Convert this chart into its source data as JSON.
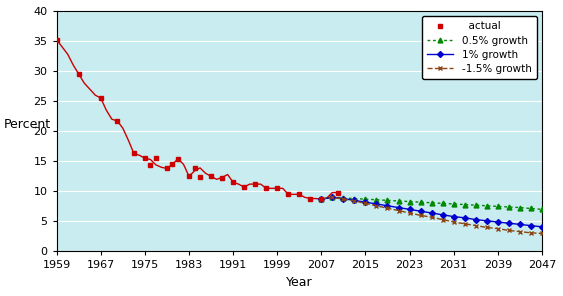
{
  "xlabel": "Year",
  "ylabel": "Percent",
  "background_color": "#c8ecf0",
  "fig_facecolor": "#ffffff",
  "xlim_min": 1959,
  "xlim_max": 2047,
  "ylim_min": 0,
  "ylim_max": 40,
  "xticks": [
    1959,
    1967,
    1975,
    1983,
    1991,
    1999,
    2007,
    2015,
    2023,
    2031,
    2039,
    2047
  ],
  "yticks": [
    0,
    5,
    10,
    15,
    20,
    25,
    30,
    35,
    40
  ],
  "actual_years": [
    1959,
    1963,
    1967,
    1970,
    1973,
    1975,
    1976,
    1977,
    1979,
    1980,
    1981,
    1983,
    1984,
    1985,
    1987,
    1989,
    1991,
    1993,
    1995,
    1997,
    1999,
    2001,
    2003,
    2005,
    2007,
    2010
  ],
  "actual_values": [
    35.2,
    29.5,
    25.5,
    21.7,
    16.3,
    15.5,
    14.4,
    15.5,
    13.8,
    14.5,
    15.4,
    12.5,
    13.9,
    12.4,
    12.5,
    12.3,
    11.5,
    10.7,
    11.2,
    10.5,
    10.5,
    9.5,
    9.5,
    8.8,
    8.7,
    9.8
  ],
  "actual_line_years": [
    1959,
    1960,
    1961,
    1962,
    1963,
    1964,
    1965,
    1966,
    1967,
    1968,
    1969,
    1970,
    1971,
    1972,
    1973,
    1974,
    1975,
    1976,
    1977,
    1978,
    1979,
    1980,
    1981,
    1982,
    1983,
    1984,
    1985,
    1986,
    1987,
    1988,
    1989,
    1990,
    1991,
    1992,
    1993,
    1994,
    1995,
    1996,
    1997,
    1998,
    1999,
    2000,
    2001,
    2002,
    2003,
    2004,
    2005,
    2006,
    2007,
    2008,
    2009,
    2010
  ],
  "actual_line_values": [
    35.2,
    34.0,
    32.8,
    31.0,
    29.5,
    28.0,
    27.0,
    26.0,
    25.5,
    23.5,
    22.0,
    21.7,
    20.5,
    18.5,
    16.3,
    16.0,
    15.5,
    15.3,
    14.4,
    14.0,
    13.8,
    14.5,
    15.4,
    14.5,
    12.5,
    13.4,
    13.9,
    13.0,
    12.5,
    12.0,
    12.3,
    12.8,
    11.5,
    11.2,
    10.7,
    11.2,
    11.2,
    11.2,
    10.5,
    10.5,
    10.5,
    10.5,
    9.5,
    9.5,
    9.5,
    9.0,
    8.8,
    8.8,
    8.7,
    8.9,
    9.8,
    9.8
  ],
  "forecast_years": [
    2007,
    2009,
    2011,
    2013,
    2015,
    2017,
    2019,
    2021,
    2023,
    2025,
    2027,
    2029,
    2031,
    2033,
    2035,
    2037,
    2039,
    2041,
    2043,
    2045,
    2047
  ],
  "growth_05_values": [
    8.7,
    9.0,
    8.9,
    8.8,
    8.7,
    8.6,
    8.5,
    8.4,
    8.3,
    8.2,
    8.1,
    8.0,
    7.9,
    7.8,
    7.7,
    7.6,
    7.5,
    7.4,
    7.3,
    7.15,
    7.0
  ],
  "growth_1_values": [
    8.7,
    9.0,
    8.8,
    8.5,
    8.2,
    7.9,
    7.6,
    7.3,
    7.0,
    6.7,
    6.4,
    6.1,
    5.8,
    5.6,
    5.3,
    5.1,
    4.9,
    4.7,
    4.5,
    4.3,
    4.1
  ],
  "growth_15_values": [
    8.7,
    9.0,
    8.7,
    8.4,
    8.0,
    7.6,
    7.2,
    6.8,
    6.4,
    6.0,
    5.7,
    5.3,
    4.9,
    4.6,
    4.3,
    4.0,
    3.8,
    3.5,
    3.3,
    3.1,
    3.0
  ],
  "color_actual": "#cc0000",
  "color_05": "#008800",
  "color_1": "#0000cc",
  "color_15": "#8b4513",
  "label_actual": "  actual",
  "label_05": "0.5% growth",
  "label_1": "1% growth",
  "label_15": "-1.5% growth"
}
